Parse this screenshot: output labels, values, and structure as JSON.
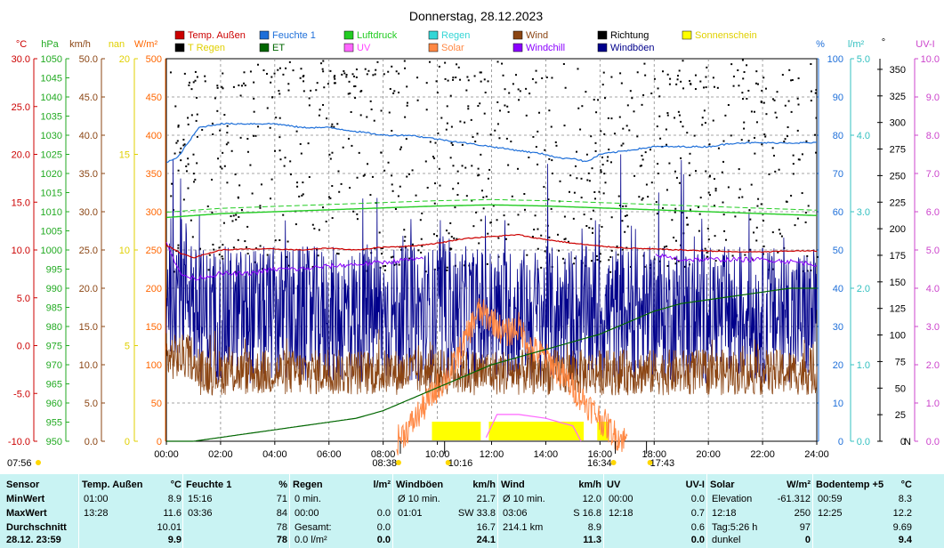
{
  "title": "Donnerstag, 28.12.2023",
  "legend": [
    {
      "label": "Temp. Außen",
      "color": "#cc0000",
      "textColor": "#cc0000"
    },
    {
      "label": "Feuchte 1",
      "color": "#1e6fd9",
      "textColor": "#1e6fd9"
    },
    {
      "label": "Luftdruck",
      "color": "#22cc22",
      "textColor": "#22cc22"
    },
    {
      "label": "Regen",
      "color": "#33d6d6",
      "textColor": "#33d6d6"
    },
    {
      "label": "Wind",
      "color": "#8b4513",
      "textColor": "#8b4513"
    },
    {
      "label": "Richtung",
      "color": "#000000",
      "textColor": "#000000"
    },
    {
      "label": "Sonnenschein",
      "color": "#ffff00",
      "textColor": "#e0d000"
    },
    {
      "label": "T Regen",
      "color": "#000000",
      "textColor": "#e0d000"
    },
    {
      "label": "ET",
      "color": "#006600",
      "textColor": "#006600"
    },
    {
      "label": "UV",
      "color": "#ff66ff",
      "textColor": "#ff44ff"
    },
    {
      "label": "Solar",
      "color": "#ff8844",
      "textColor": "#ff8844"
    },
    {
      "label": "Windchill",
      "color": "#8b00ff",
      "textColor": "#8b00ff"
    },
    {
      "label": "Windböen",
      "color": "#00008b",
      "textColor": "#00008b"
    }
  ],
  "axes": {
    "temp": {
      "unit": "°C",
      "color": "#cc0000",
      "ticks": [
        "30.0",
        "25.0",
        "20.0",
        "15.0",
        "10.0",
        "5.0",
        "0.0",
        "-5.0",
        "-10.0"
      ]
    },
    "pressure": {
      "unit": "hPa",
      "color": "#22aa22",
      "ticks": [
        "1050",
        "1045",
        "1040",
        "1035",
        "1030",
        "1025",
        "1020",
        "1015",
        "1010",
        "1005",
        "1000",
        "995",
        "990",
        "985",
        "980",
        "975",
        "970",
        "965",
        "960",
        "955",
        "950"
      ]
    },
    "wind": {
      "unit": "km/h",
      "color": "#8b4513",
      "ticks": [
        "50.0",
        "45.0",
        "40.0",
        "35.0",
        "30.0",
        "25.0",
        "20.0",
        "15.0",
        "10.0",
        "5.0",
        "0.0"
      ]
    },
    "rain_rate": {
      "unit": "nan",
      "color": "#e0d000",
      "ticks": [
        "20",
        "15",
        "10",
        "5",
        "0"
      ]
    },
    "solar": {
      "unit": "W/m²",
      "color": "#ff6600",
      "ticks": [
        "500",
        "450",
        "400",
        "350",
        "300",
        "250",
        "200",
        "150",
        "100",
        "50",
        "0"
      ]
    },
    "humidity": {
      "unit": "%",
      "color": "#1e6fd9",
      "ticks": [
        "100",
        "90",
        "80",
        "70",
        "60",
        "50",
        "40",
        "30",
        "20",
        "10",
        "0"
      ]
    },
    "rain": {
      "unit": "l/m²",
      "color": "#33c0c0",
      "ticks": [
        "5.0",
        "4.0",
        "3.0",
        "2.0",
        "1.0",
        "0.0"
      ]
    },
    "direction": {
      "unit": "°",
      "color": "#000000",
      "ticks": [
        "350",
        "325",
        "300",
        "275",
        "250",
        "225",
        "200",
        "175",
        "150",
        "125",
        "100",
        "75",
        "50",
        "25",
        "0"
      ],
      "zero_label": "N"
    },
    "uv": {
      "unit": "UV-I",
      "color": "#cc44cc",
      "ticks": [
        "10.0",
        "9.0",
        "8.0",
        "7.0",
        "6.0",
        "5.0",
        "4.0",
        "3.0",
        "2.0",
        "1.0",
        "0.0"
      ]
    }
  },
  "x_ticks": [
    "00:00",
    "02:00",
    "04:00",
    "06:00",
    "08:00",
    "10:00",
    "12:00",
    "14:00",
    "16:00",
    "18:00",
    "20:00",
    "22:00",
    "24:00"
  ],
  "markers": {
    "sunrise_prev": "07:56",
    "sunrise": "08:38",
    "sun_a": "10:16",
    "sun_b": "16:34",
    "sunset": "17:43"
  },
  "chart_data": {
    "type": "line",
    "title": "Donnerstag, 28.12.2023",
    "x_unit": "hours",
    "xlim": [
      0,
      24
    ],
    "series": [
      {
        "name": "Temp. Außen",
        "axis": "°C",
        "ylim": [
          -10,
          30
        ],
        "x": [
          0,
          0.5,
          1,
          1.5,
          2,
          3,
          4,
          5,
          6,
          7,
          8,
          9,
          10,
          11,
          12,
          12.5,
          13,
          13.5,
          14,
          15,
          16,
          17,
          18,
          19,
          20,
          21,
          22,
          23,
          24
        ],
        "values": [
          10.5,
          9.7,
          9.2,
          9.6,
          10.0,
          10.1,
          10.1,
          10.0,
          10.2,
          10.0,
          10.3,
          10.4,
          10.7,
          11.2,
          11.4,
          11.5,
          11.6,
          11.3,
          11.1,
          10.7,
          10.4,
          10.2,
          10.1,
          10.0,
          9.9,
          9.8,
          9.8,
          9.9,
          9.9
        ]
      },
      {
        "name": "Feuchte 1",
        "axis": "%",
        "ylim": [
          0,
          100
        ],
        "x": [
          0,
          0.4,
          0.8,
          1.2,
          2,
          3,
          4,
          5,
          6,
          7,
          8,
          9,
          10,
          11,
          12,
          13,
          14,
          14.5,
          15,
          15.5,
          16,
          17,
          18,
          19,
          20,
          21,
          22,
          23,
          24
        ],
        "values": [
          73,
          74,
          78,
          82,
          83,
          83,
          83,
          82,
          82,
          81,
          80,
          80,
          79,
          78,
          77,
          76,
          75,
          74,
          74,
          73,
          75,
          76,
          77,
          77,
          77,
          78,
          78,
          78,
          78
        ]
      },
      {
        "name": "Luftdruck",
        "axis": "hPa",
        "ylim": [
          950,
          1050
        ],
        "x": [
          0,
          2,
          4,
          6,
          8,
          10,
          12,
          14,
          16,
          18,
          20,
          22,
          24
        ],
        "values": [
          1008.5,
          1009.5,
          1010,
          1010.5,
          1011,
          1011.5,
          1011.8,
          1011.5,
          1011,
          1010.5,
          1010,
          1009.5,
          1009
        ]
      },
      {
        "name": "Windchill",
        "axis": "°C",
        "ylim": [
          -10,
          30
        ],
        "x": [
          0,
          0.5,
          1,
          2,
          3,
          4,
          5,
          6,
          7,
          8,
          9,
          9.5,
          10,
          12,
          14,
          16,
          17,
          18,
          19,
          20,
          21,
          22,
          23,
          24
        ],
        "values": [
          11.0,
          7.5,
          7.0,
          7.5,
          7.5,
          8.0,
          8.0,
          8.3,
          8.5,
          8.7,
          9.0,
          9.0,
          null,
          null,
          null,
          null,
          null,
          9.5,
          9.0,
          9.0,
          9.0,
          9.0,
          8.8,
          8.5
        ]
      },
      {
        "name": "ET",
        "axis": "l/m²",
        "ylim": [
          0,
          5
        ],
        "x": [
          0,
          1,
          2,
          3,
          4,
          5,
          6,
          7,
          8,
          9,
          10,
          11,
          12,
          13,
          14,
          15,
          16,
          17,
          18,
          19,
          20,
          21,
          22,
          23,
          24
        ],
        "values": [
          0,
          0,
          0.05,
          0.1,
          0.15,
          0.2,
          0.25,
          0.3,
          0.4,
          0.55,
          0.7,
          0.85,
          1.0,
          1.1,
          1.2,
          1.3,
          1.4,
          1.55,
          1.7,
          1.8,
          1.85,
          1.9,
          1.95,
          2.0,
          2.0
        ]
      },
      {
        "name": "Solar",
        "axis": "W/m²",
        "ylim": [
          0,
          500
        ],
        "x": [
          8.5,
          9,
          9.5,
          10,
          10.5,
          11,
          11.5,
          12,
          12.5,
          13,
          13.5,
          14,
          14.5,
          15,
          15.5,
          16,
          16.5,
          17
        ],
        "values": [
          0,
          20,
          45,
          70,
          90,
          130,
          170,
          160,
          140,
          150,
          120,
          110,
          90,
          70,
          50,
          30,
          10,
          0
        ]
      },
      {
        "name": "Windböen",
        "axis": "km/h",
        "ylim": [
          0,
          50
        ]
      },
      {
        "name": "Wind",
        "axis": "km/h",
        "ylim": [
          0,
          50
        ]
      },
      {
        "name": "Richtung",
        "axis": "°",
        "ylim": [
          0,
          360
        ]
      },
      {
        "name": "Sonnenschein"
      },
      {
        "name": "UV",
        "axis": "UV-I",
        "ylim": [
          0,
          10
        ]
      }
    ],
    "sunshine_blocks": [
      [
        9.8,
        11.6
      ],
      [
        11.9,
        15.4
      ],
      [
        15.9,
        16.3
      ]
    ],
    "uv_points": {
      "x": [
        11.8,
        12.2,
        13.0,
        14.0,
        15.0,
        15.3
      ],
      "values": [
        0.1,
        0.7,
        0.7,
        0.6,
        0.4,
        0.0
      ]
    }
  },
  "stats": {
    "sections": [
      {
        "title": "Temp. Außen",
        "unit": "°C",
        "rows": [
          [
            "01:00",
            "8.9"
          ],
          [
            "13:28",
            "11.6"
          ],
          [
            "",
            "10.01"
          ],
          [
            "",
            "9.9"
          ]
        ]
      },
      {
        "title": "Feuchte 1",
        "unit": "%",
        "rows": [
          [
            "15:16",
            "71"
          ],
          [
            "03:36",
            "84"
          ],
          [
            "",
            "78"
          ],
          [
            "",
            "78"
          ]
        ]
      },
      {
        "title": "Regen",
        "unit": "l/m²",
        "rows": [
          [
            "0 min.",
            ""
          ],
          [
            "00:00",
            "0.0"
          ],
          [
            "Gesamt:",
            "0.0"
          ],
          [
            "0.0 l/m²",
            "0.0"
          ]
        ]
      },
      {
        "title": "Windböen",
        "unit": "km/h",
        "rows": [
          [
            "Ø 10 min.",
            "21.7"
          ],
          [
            "01:01",
            "SW 33.8"
          ],
          [
            "",
            "16.7"
          ],
          [
            "",
            "24.1"
          ]
        ]
      },
      {
        "title": "Wind",
        "unit": "km/h",
        "rows": [
          [
            "Ø 10 min.",
            "12.0"
          ],
          [
            "03:06",
            "S 16.8"
          ],
          [
            "214.1 km",
            "8.9"
          ],
          [
            "",
            "11.3"
          ]
        ]
      },
      {
        "title": "UV",
        "unit": "UV-I",
        "rows": [
          [
            "00:00",
            "0.0"
          ],
          [
            "12:18",
            "0.7"
          ],
          [
            "",
            "0.6"
          ],
          [
            "",
            "0.0"
          ]
        ]
      },
      {
        "title": "Solar",
        "unit": "W/m²",
        "rows": [
          [
            "Elevation",
            "-61.312"
          ],
          [
            "12:18",
            "250"
          ],
          [
            "Tag:5:26 h",
            "97"
          ],
          [
            "dunkel",
            "0"
          ]
        ]
      },
      {
        "title": "Bodentemp +5",
        "unit": "°C",
        "rows": [
          [
            "00:59",
            "8.3"
          ],
          [
            "12:25",
            "12.2"
          ],
          [
            "",
            "9.69"
          ],
          [
            "",
            "9.4"
          ]
        ]
      }
    ],
    "row_labels": [
      "Sensor",
      "MinWert",
      "MaxWert",
      "Durchschnitt",
      "28.12. 23:59"
    ]
  }
}
